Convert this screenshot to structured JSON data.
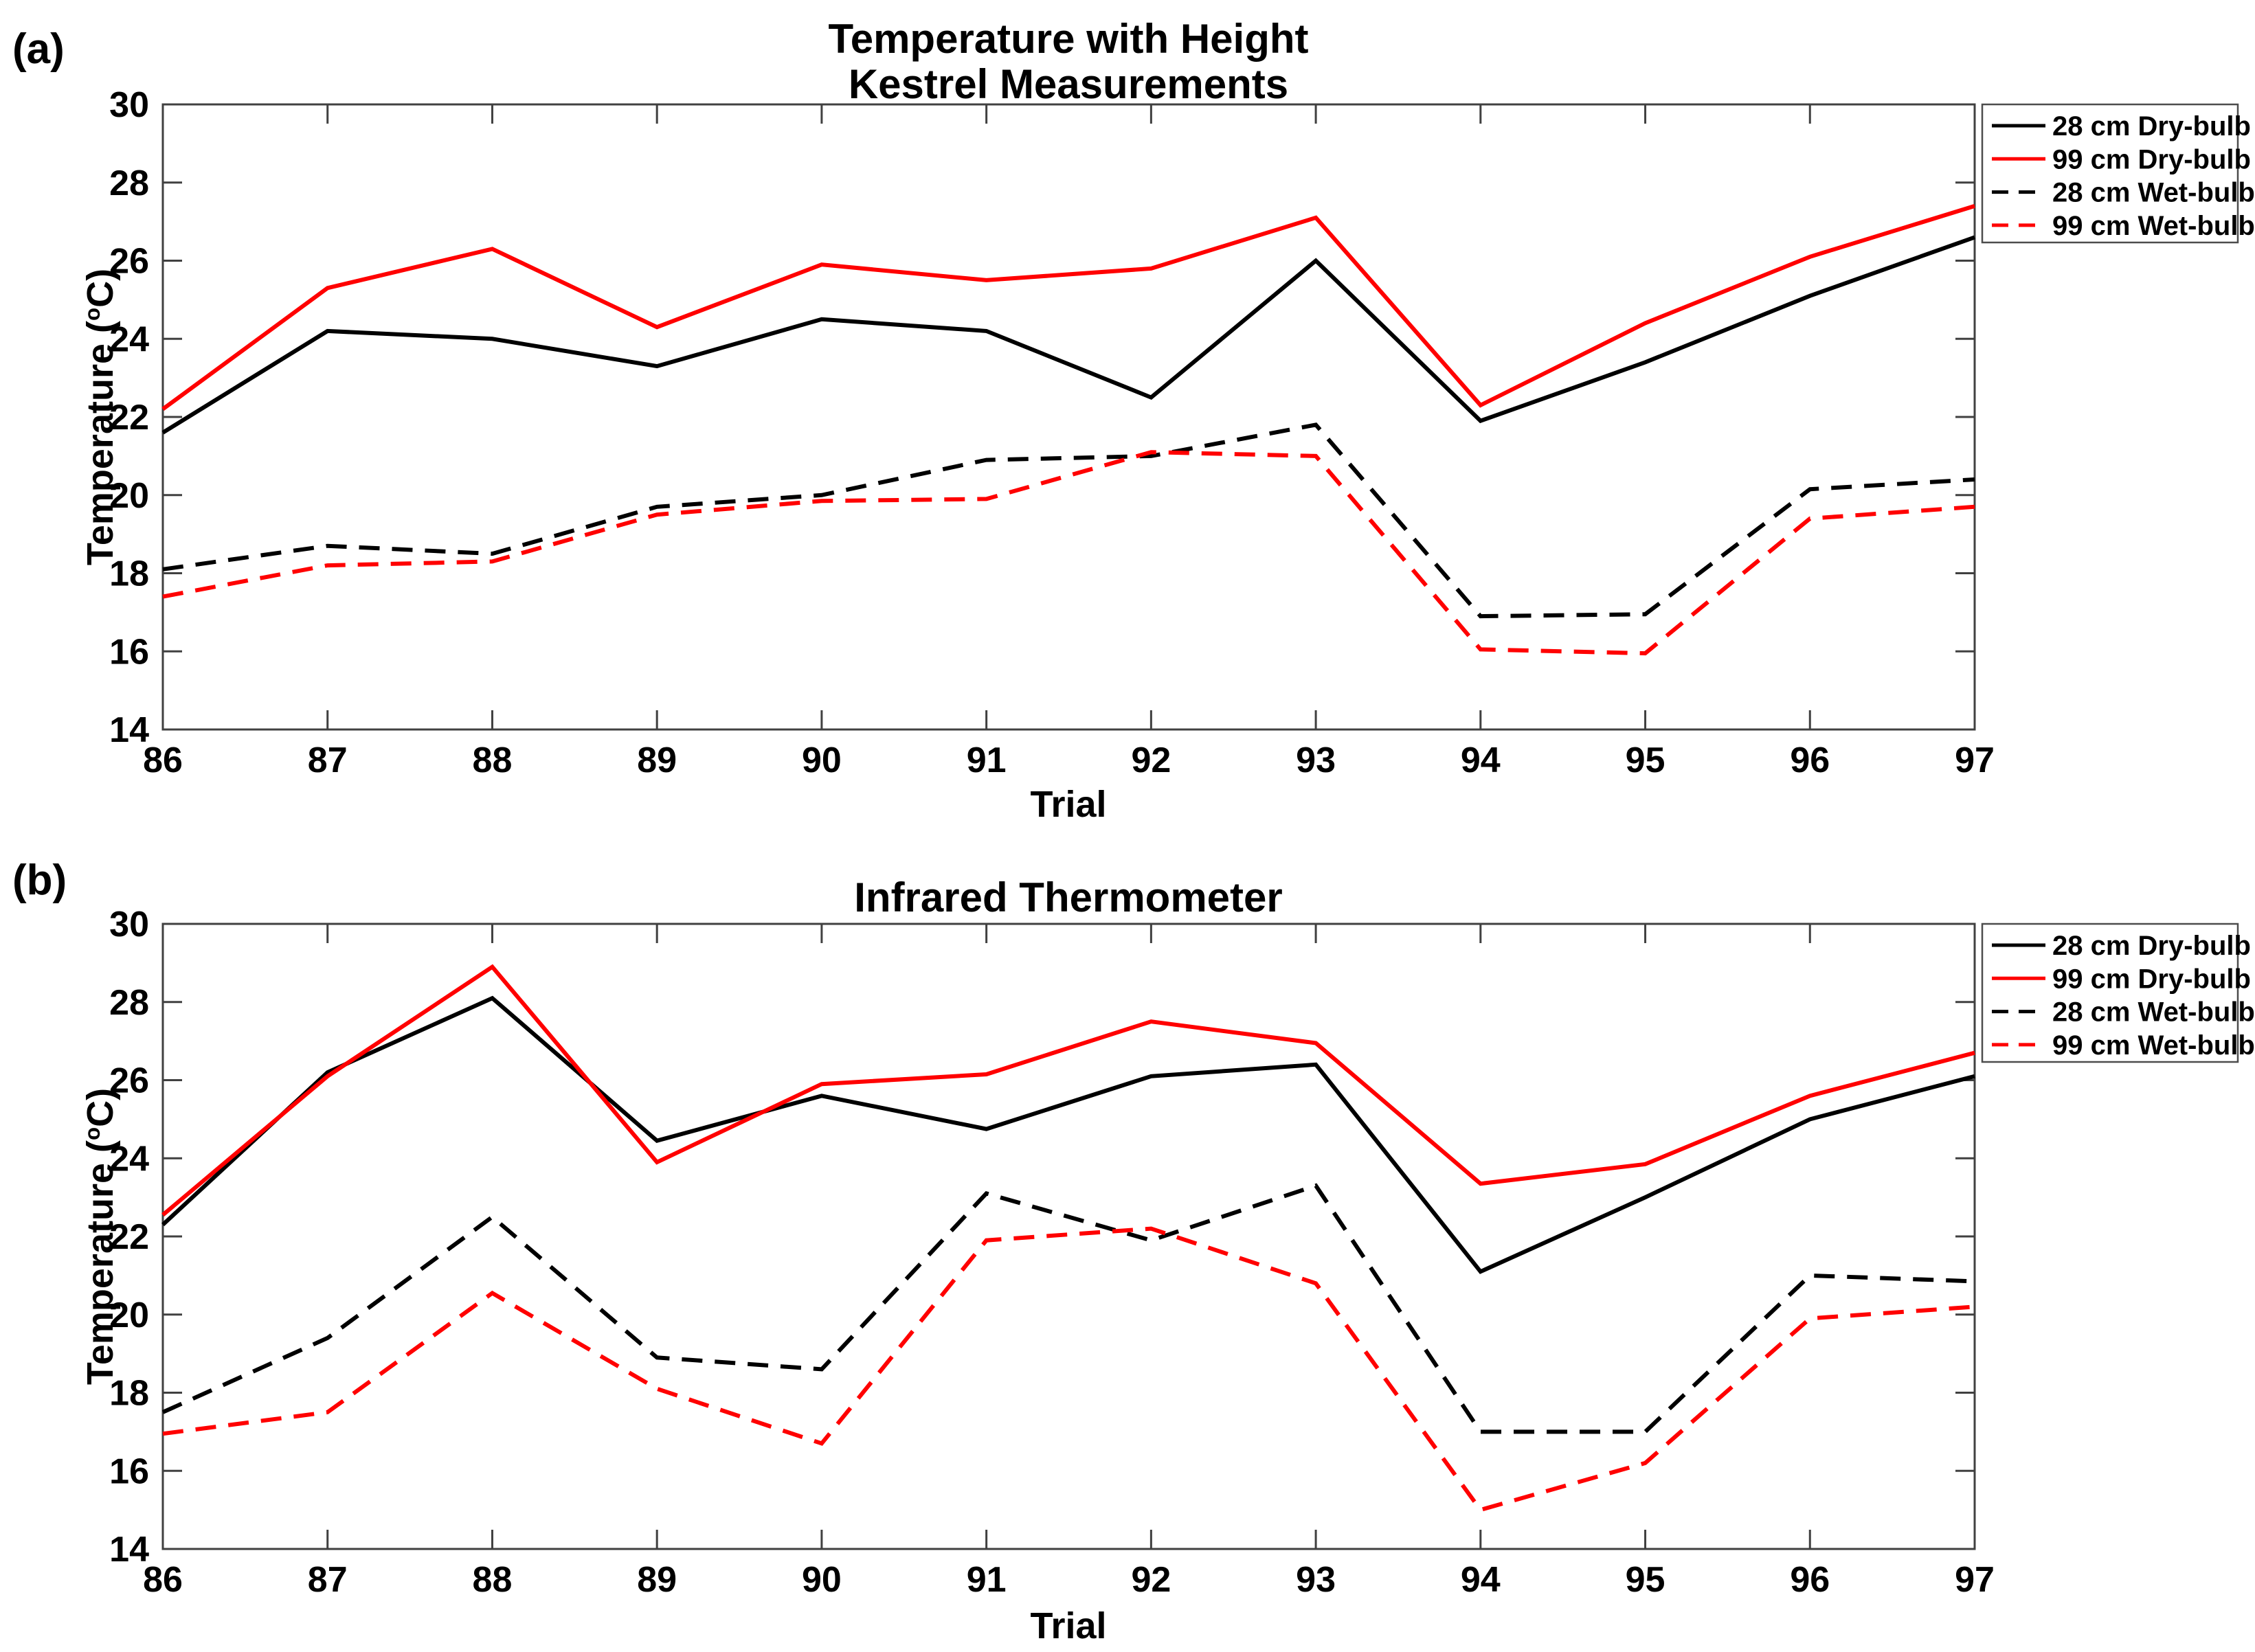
{
  "figure": {
    "background": "#ffffff",
    "accent_red": "#ff0000",
    "accent_black": "#000000",
    "axis_color": "#404040"
  },
  "chart_data": [
    {
      "type": "line",
      "panel_letter": "(a)",
      "title_lines": [
        "Temperature with Height",
        "Kestrel Measurements"
      ],
      "xlabel": "Trial",
      "ylabel": {
        "prefix": "Temperature (",
        "sup": "o",
        "suffix": "C)"
      },
      "xlim": [
        86,
        97
      ],
      "ylim": [
        14,
        30
      ],
      "xticks": [
        86,
        87,
        88,
        89,
        90,
        91,
        92,
        93,
        94,
        95,
        96,
        97
      ],
      "yticks": [
        14,
        16,
        18,
        20,
        22,
        24,
        26,
        28,
        30
      ],
      "grid": false,
      "legend_position": "outside-right-top",
      "x": [
        86,
        87,
        88,
        89,
        90,
        91,
        92,
        93,
        94,
        95,
        96,
        97
      ],
      "series": [
        {
          "name": "28 cm Dry-bulb",
          "color": "#000000",
          "line_style": "solid",
          "values": [
            21.6,
            24.2,
            24.0,
            23.3,
            24.5,
            24.2,
            22.5,
            26.0,
            21.9,
            23.4,
            25.1,
            26.6
          ]
        },
        {
          "name": "99 cm Dry-bulb",
          "color": "#ff0000",
          "line_style": "solid",
          "values": [
            22.2,
            25.3,
            26.3,
            24.3,
            25.9,
            25.5,
            25.8,
            27.1,
            22.3,
            24.4,
            26.1,
            27.4
          ]
        },
        {
          "name": "28 cm Wet-bulb",
          "color": "#000000",
          "line_style": "dashed",
          "values": [
            18.1,
            18.7,
            18.5,
            19.7,
            20.0,
            20.9,
            21.0,
            21.8,
            16.9,
            16.95,
            20.15,
            20.4
          ]
        },
        {
          "name": "99 cm Wet-bulb",
          "color": "#ff0000",
          "line_style": "dashed",
          "values": [
            17.4,
            18.2,
            18.3,
            19.5,
            19.85,
            19.9,
            21.1,
            21.0,
            16.05,
            15.95,
            19.4,
            19.7
          ]
        }
      ]
    },
    {
      "type": "line",
      "panel_letter": "(b)",
      "title_lines": [
        "Infrared Thermometer"
      ],
      "xlabel": "Trial",
      "ylabel": {
        "prefix": "Temperature (",
        "sup": "o",
        "suffix": "C)"
      },
      "xlim": [
        86,
        97
      ],
      "ylim": [
        14,
        30
      ],
      "xticks": [
        86,
        87,
        88,
        89,
        90,
        91,
        92,
        93,
        94,
        95,
        96,
        97
      ],
      "yticks": [
        14,
        16,
        18,
        20,
        22,
        24,
        26,
        28,
        30
      ],
      "grid": false,
      "legend_position": "outside-right-top",
      "x": [
        86,
        87,
        88,
        89,
        90,
        91,
        92,
        93,
        94,
        95,
        96,
        97
      ],
      "series": [
        {
          "name": "28 cm Dry-bulb",
          "color": "#000000",
          "line_style": "solid",
          "values": [
            22.3,
            26.2,
            28.1,
            24.45,
            25.6,
            24.75,
            26.1,
            26.4,
            21.1,
            23.0,
            25.0,
            26.1
          ]
        },
        {
          "name": "99 cm Dry-bulb",
          "color": "#ff0000",
          "line_style": "solid",
          "values": [
            22.55,
            26.1,
            28.9,
            23.9,
            25.9,
            26.15,
            27.5,
            26.95,
            23.35,
            23.85,
            25.6,
            26.7
          ]
        },
        {
          "name": "28 cm Wet-bulb",
          "color": "#000000",
          "line_style": "dashed",
          "values": [
            17.5,
            19.4,
            22.5,
            18.9,
            18.6,
            23.1,
            21.9,
            23.3,
            17.0,
            17.0,
            21.0,
            20.85
          ]
        },
        {
          "name": "99 cm Wet-bulb",
          "color": "#ff0000",
          "line_style": "dashed",
          "values": [
            16.95,
            17.5,
            20.55,
            18.1,
            16.7,
            21.9,
            22.2,
            20.8,
            15.0,
            16.2,
            19.9,
            20.2
          ]
        }
      ]
    }
  ]
}
